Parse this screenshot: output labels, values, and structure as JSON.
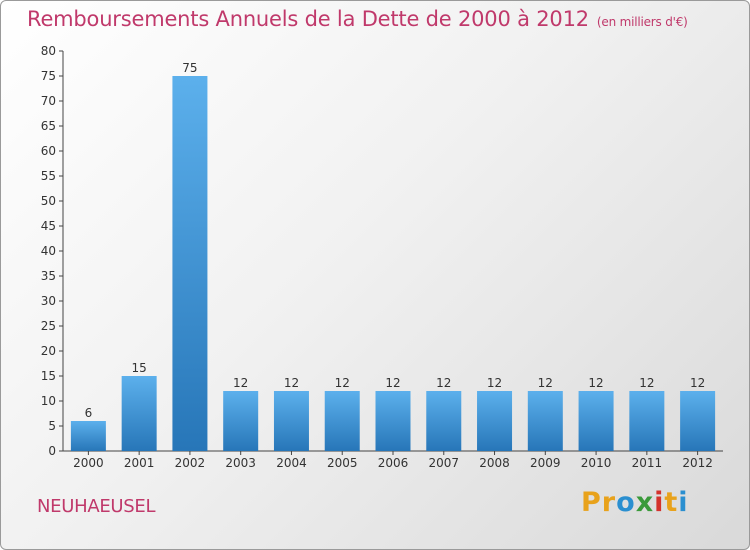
{
  "chart_data": {
    "type": "bar",
    "title": "Remboursements Annuels de la Dette de 2000 à 2012",
    "subtitle": "(en milliers d'€)",
    "categories": [
      "2000",
      "2001",
      "2002",
      "2003",
      "2004",
      "2005",
      "2006",
      "2007",
      "2008",
      "2009",
      "2010",
      "2011",
      "2012"
    ],
    "values": [
      6,
      15,
      75,
      12,
      12,
      12,
      12,
      12,
      12,
      12,
      12,
      12,
      12
    ],
    "ylim": [
      0,
      80
    ],
    "ytick_step": 5,
    "grid": false,
    "bar_color": "#3a8fd6",
    "title_color": "#c0396b"
  },
  "footer": {
    "commune": "NEUHAEUSEL"
  },
  "logo": {
    "letters": [
      "P",
      "r",
      "o",
      "x",
      "i",
      "t",
      "i"
    ],
    "colors": [
      "#e8a21b",
      "#e8a21b",
      "#2a8fd0",
      "#3a9a3a",
      "#d4322c",
      "#e8a21b",
      "#2a8fd0"
    ]
  }
}
